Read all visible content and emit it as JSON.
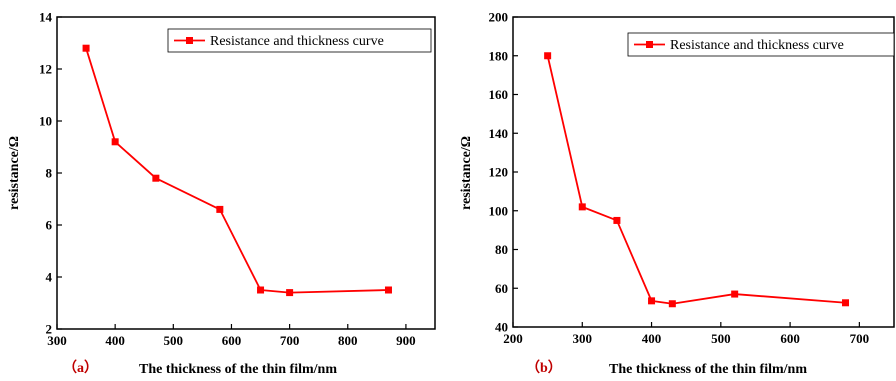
{
  "chart_data": [
    {
      "type": "line",
      "panel_label": "（a）",
      "xlabel": "The thickness of the thin film/nm",
      "ylabel": "resistance/Ω",
      "xlim": [
        300,
        950
      ],
      "ylim": [
        2,
        14
      ],
      "xticks": [
        300,
        400,
        500,
        600,
        700,
        800,
        900
      ],
      "yticks": [
        2,
        4,
        6,
        8,
        10,
        12,
        14
      ],
      "legend_position": "top-right",
      "grid": false,
      "series": [
        {
          "name": "Resistance and thickness curve",
          "color": "#ff0000",
          "marker": "square",
          "x": [
            350,
            400,
            470,
            580,
            650,
            700,
            870
          ],
          "y": [
            12.8,
            9.2,
            7.8,
            6.6,
            3.5,
            3.4,
            3.5
          ]
        }
      ]
    },
    {
      "type": "line",
      "panel_label": "（b）",
      "xlabel": "The thickness of the thin film/nm",
      "ylabel": "resistance/Ω",
      "xlim": [
        200,
        750
      ],
      "ylim": [
        40,
        200
      ],
      "xticks": [
        200,
        300,
        400,
        500,
        600,
        700
      ],
      "yticks": [
        40,
        60,
        80,
        100,
        120,
        140,
        160,
        180,
        200
      ],
      "legend_position": "top-right",
      "grid": false,
      "series": [
        {
          "name": "Resistance and thickness curve",
          "color": "#ff0000",
          "marker": "square",
          "x": [
            250,
            300,
            350,
            400,
            430,
            520,
            680
          ],
          "y": [
            180,
            102,
            95,
            53.5,
            52,
            57,
            52.5
          ]
        }
      ]
    }
  ]
}
